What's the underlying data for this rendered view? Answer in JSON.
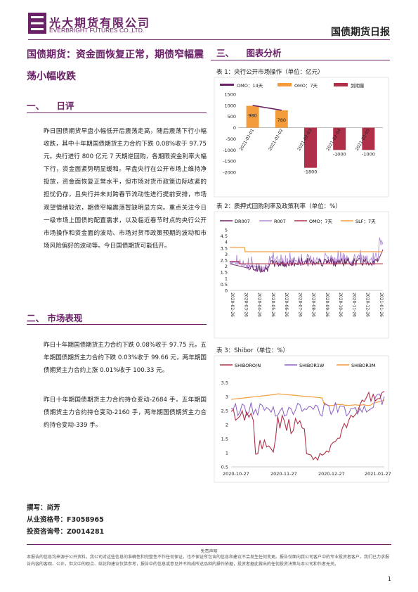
{
  "header": {
    "company_cn": "光大期货有限公司",
    "company_en": "EVERBRIGHT FUTURES CO.,LTD.",
    "report_title": "国债期货日报"
  },
  "main_title": "国债期货：资金面恢复正常，期债窄幅震荡小幅收跌",
  "sections": {
    "s1": {
      "num": "一、",
      "title": "日评"
    },
    "s2": {
      "num": "二、",
      "title": "市场表现"
    },
    "s3": {
      "num": "三、",
      "title": "图表分析"
    }
  },
  "paragraphs": {
    "p1": "昨日国债期货早盘小幅低开后震荡走高，随后震荡下行小幅收跌，其中十年期国债期货主力合约下跌 0.08%收于 97.75 元。央行进行 800 亿元 7 天期逆回购，各期限资金利率大幅下行，资金面紧势明显缓和。早盘央行在公开市场上维持净投放，资金面恢复正常水平，但市场对货币政策边际收紧的担忧仍存，且央行并未对跨春节流动性进行提前安排，市场观望情绪较浓，期债窄幅震荡暂缺明显方向。重点关注今日一级市场上国债的配置需求，以及临近春节时点的央行公开市场操作和资金面的波动、市场对货币政策预期的波动和市场风险偏好的波动等。今日国债期货可能低开。",
    "p2": "昨日十年期国债期货主力合约下跌 0.08%收于 97.75 元，五年期国债期货主力合约下跌 0.03%收于 99.66 元，两年期国债期货主力合约上涨 0.01%收于 100.33 元。",
    "p3": "昨日十年期国债期货主力合约持仓变动-2684 手，五年期国债期货主力合约持仓变动-2160 手，两年期国债期货主力合约持仓变动-339 手。"
  },
  "authors": {
    "name": "撰写：尚芳",
    "qualification": "从业资格号：F3058965",
    "consult": "投资咨询号：Z0014281"
  },
  "charts": {
    "c1_caption": "表 1：央行公开市场操作（单位：亿元）",
    "c2_caption": "表 2：质押式回购利率及政策利率（单位：%）",
    "c3_caption": "表 3：Shibor（单位：%）"
  },
  "chart_data": [
    {
      "type": "bar",
      "categories": [
        "2021-02-01",
        "2021-02-02",
        "2021-02-03",
        "2021-02-04",
        "2021-02-05"
      ],
      "series": [
        {
          "name": "OMO：14天",
          "values": [
            1000,
            780,
            null,
            null,
            null
          ]
        },
        {
          "name": "OMO：7天",
          "values": [
            980,
            780,
            null,
            null,
            null
          ]
        },
        {
          "name": "到期量",
          "values": [
            null,
            null,
            -1800,
            -1000,
            -1000
          ]
        }
      ],
      "data_labels": [
        "980",
        "780",
        "-1800",
        "-1000",
        "-1000"
      ],
      "yticks": [
        "1500",
        "1000",
        "500",
        "0",
        "-500",
        "-1000",
        "-1500",
        "-2000"
      ],
      "ylim": [
        -2000,
        1500
      ],
      "legend": "top",
      "colors": [
        "#6b2168",
        "#f39c3c",
        "#b0304a"
      ]
    },
    {
      "type": "line",
      "series_names": [
        "DR007",
        "R007",
        "OMO：7天",
        "SLF：7天"
      ],
      "x_ticks": [
        "2020-02-26",
        "2020-03-26",
        "2020-04-26",
        "2020-05-26",
        "2020-06-26",
        "2020-07-26",
        "2020-08-26",
        "2020-09-26",
        "2020-10-26",
        "2020-11-26",
        "2020-12-26",
        "2021-01-26"
      ],
      "yticks": [
        "5",
        "4.5",
        "4",
        "3.5",
        "3",
        "2.5",
        "2",
        "1.5",
        "1",
        "0.5",
        "0"
      ],
      "ylim": [
        0,
        5
      ],
      "legend": "top",
      "colors": [
        "#6b2168",
        "#b08ad6",
        "#b0304a",
        "#f39c3c"
      ]
    },
    {
      "type": "line",
      "series_names": [
        "SHIBORO/N",
        "SHIBOR1W",
        "SHIBOR3M"
      ],
      "x_ticks": [
        "2020-10-27",
        "2020-11-27",
        "2020-12-27",
        "2021-01-27"
      ],
      "yticks": [
        "3.5",
        "3",
        "2.5",
        "2",
        "1.5",
        "1",
        "0.5"
      ],
      "ylim": [
        0.5,
        3.5
      ],
      "legend": "top",
      "colors": [
        "#b0304a",
        "#8a5fc4",
        "#f39c3c"
      ]
    }
  ],
  "footer": {
    "title": "免责声明",
    "text": "本报告的信息均来源于公开资料，我公司对这些信息的准确性和完整性不作任何保证，也不保证所包含的信息和建议不会发生任何变更。报告仅面向我公司客户中的专业投资者客户。我们已力求报告内容的客观、公正，但文中的观点、结论和建议仅供参考，报告中的信息或意见并不构成所述品种的操作依据，投资者据此做出的任何投资决策与本公司和作者无关。",
    "page": "1"
  }
}
